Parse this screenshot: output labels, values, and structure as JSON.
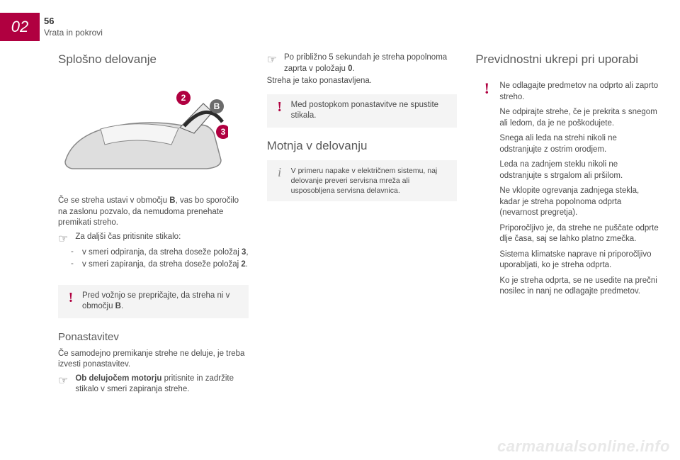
{
  "chapter": {
    "number": "02"
  },
  "page": {
    "number": "56",
    "breadcrumb": "Vrata in pokrovi"
  },
  "col1": {
    "title": "Splošno delovanje",
    "illustration": {
      "markers": {
        "arc_label": "B",
        "num2": "2",
        "num3": "3"
      },
      "colors": {
        "arc_circle": "#6b6b6b",
        "num_circle": "#b00040",
        "car_body": "#dedede",
        "car_outline": "#888888",
        "arc_line": "#2c2c2c"
      }
    },
    "p1_html": "Če se streha ustavi v območju <b>B</b>, vas bo sporočilo na zaslonu pozvalo, da nemudoma prenehate premikati streho.",
    "bullet1": "Za daljši čas pritisnite stikalo:",
    "dash1_html": "v smeri odpiranja, da streha doseže položaj <b>3</b>,",
    "dash2_html": "v smeri zapiranja, da streha doseže položaj <b>2</b>.",
    "warn1_html": "Pred vožnjo se prepričajte, da streha ni v območju <b>B</b>.",
    "sub1": "Ponastavitev",
    "p2": "Če samodejno premikanje strehe ne deluje, je treba izvesti ponastavitev.",
    "bullet2_html": "<b>Ob delujočem motorju</b> pritisnite in zadržite stikalo v smeri zapiranja strehe."
  },
  "col2": {
    "bullet1_html": "Po približno 5 sekundah je streha popolnoma zaprta v položaju <b>0</b>.",
    "p1": "Streha je tako ponastavljena.",
    "warn1": "Med postopkom ponastavitve ne spustite stikala.",
    "sub1": "Motnja v delovanju",
    "info1": "V primeru napake v električnem sistemu, naj delovanje preveri servisna mreža ali usposobljena servisna delavnica."
  },
  "col3": {
    "title": "Previdnostni ukrepi pri uporabi",
    "warn": {
      "p1": "Ne odlagajte predmetov na odprto ali zaprto streho.",
      "p2": "Ne odpirajte strehe, če je prekrita s snegom ali ledom, da je ne poškodujete.",
      "p3": "Snega ali leda na strehi nikoli ne odstranjujte z ostrim orodjem.",
      "p4": "Leda na zadnjem steklu nikoli ne odstranjujte s strgalom ali pršilom.",
      "p5": "Ne vklopite ogrevanja zadnjega stekla, kadar je streha popolnoma odprta (nevarnost pregretja).",
      "p6": "Priporočljivo je, da strehe ne puščate odprte dlje časa, saj se lahko platno zmečka.",
      "p7": "Sistema klimatske naprave ni priporočljivo uporabljati, ko je streha odprta.",
      "p8": "Ko je streha odprta, se ne usedite na prečni nosilec in nanj ne odlagajte predmetov."
    }
  },
  "watermark": "carmanualsonline.info"
}
